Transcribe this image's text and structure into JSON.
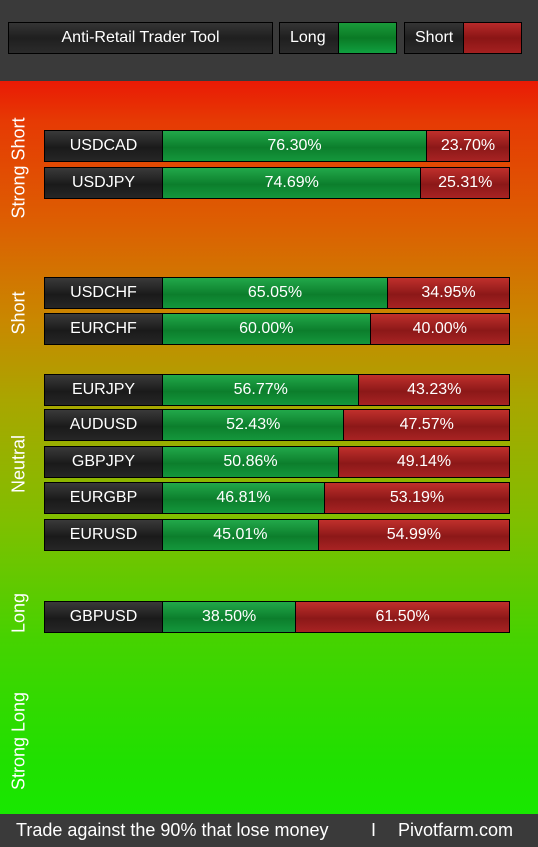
{
  "header": {
    "title": "Anti-Retail Trader Tool",
    "long_label": "Long",
    "short_label": "Short"
  },
  "colors": {
    "long": "#0e8a33",
    "short": "#9e1e1e",
    "zone_top": "#ea1a05",
    "zone_bottom": "#18e800"
  },
  "zones": {
    "strong_short": "Strong Short",
    "short": "Short",
    "neutral": "Neutral",
    "long": "Long",
    "strong_long": "Strong Long"
  },
  "rows": [
    {
      "pair": "USDCAD",
      "long_pct": "76.30%",
      "short_pct": "23.70%",
      "long_value": 76.3
    },
    {
      "pair": "USDJPY",
      "long_pct": "74.69%",
      "short_pct": "25.31%",
      "long_value": 74.69
    },
    {
      "pair": "USDCHF",
      "long_pct": "65.05%",
      "short_pct": "34.95%",
      "long_value": 65.05
    },
    {
      "pair": "EURCHF",
      "long_pct": "60.00%",
      "short_pct": "40.00%",
      "long_value": 60.0
    },
    {
      "pair": "EURJPY",
      "long_pct": "56.77%",
      "short_pct": "43.23%",
      "long_value": 56.77
    },
    {
      "pair": "AUDUSD",
      "long_pct": "52.43%",
      "short_pct": "47.57%",
      "long_value": 52.43
    },
    {
      "pair": "GBPJPY",
      "long_pct": "50.86%",
      "short_pct": "49.14%",
      "long_value": 50.86
    },
    {
      "pair": "EURGBP",
      "long_pct": "46.81%",
      "short_pct": "53.19%",
      "long_value": 46.81
    },
    {
      "pair": "EURUSD",
      "long_pct": "45.01%",
      "short_pct": "54.99%",
      "long_value": 45.01
    },
    {
      "pair": "GBPUSD",
      "long_pct": "38.50%",
      "short_pct": "61.50%",
      "long_value": 38.5
    }
  ],
  "footer": {
    "tagline": "Trade against the 90% that lose money",
    "separator": "I",
    "site": "Pivotfarm.com"
  }
}
